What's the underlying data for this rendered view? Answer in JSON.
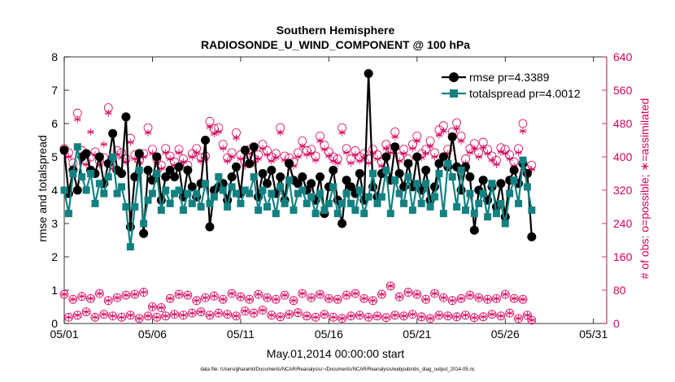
{
  "chart_data": {
    "type": "line",
    "title_line1": "Southern Hemisphere",
    "title_line2": "RADIOSONDE_U_WIND_COMPONENT @ 100 hPa",
    "xlabel": "May.01,2014 00:00:00 start",
    "ylabel_left": "rmse and totalspread",
    "ylabel_right": "# of obs: o=possible; ∗=assimilated",
    "xlim": [
      0,
      30.75
    ],
    "ylim_left": [
      0,
      8
    ],
    "ylim_right": [
      0,
      640
    ],
    "x_ticks": [
      0,
      5,
      10,
      15,
      20,
      25,
      30
    ],
    "x_tick_labels": [
      "05/01",
      "05/06",
      "05/11",
      "05/16",
      "05/21",
      "05/26",
      "05/31"
    ],
    "y_ticks_left": [
      "0",
      "1",
      "2",
      "3",
      "4",
      "5",
      "6",
      "7",
      "8"
    ],
    "y_ticks_right": [
      "0",
      "80",
      "160",
      "240",
      "320",
      "400",
      "480",
      "560",
      "640"
    ],
    "legend_position": "top-right",
    "grid": false,
    "colors": {
      "rmse": "#000000",
      "totalspread": "#138181",
      "obs": "#d6005b",
      "axes": "#000000"
    },
    "series": [
      {
        "name": "rmse pr=4.3389",
        "key": "rmse",
        "axis": "left",
        "values": [
          5.2,
          3.9,
          4.6,
          4.0,
          5.0,
          5.1,
          4.6,
          4.5,
          5.0,
          4.2,
          4.8,
          5.7,
          4.6,
          4.5,
          6.2,
          2.9,
          4.4,
          5.1,
          2.7,
          4.6,
          4.3,
          5.0,
          3.7,
          4.4,
          4.6,
          4.4,
          4.7,
          3.8,
          4.6,
          4.1,
          3.8,
          4.2,
          5.5,
          2.9,
          4.0,
          4.1,
          4.2,
          3.7,
          4.4,
          4.7,
          3.9,
          5.2,
          4.8,
          5.3,
          3.8,
          4.5,
          4.2,
          4.6,
          3.9,
          4.4,
          3.7,
          4.8,
          4.3,
          4.2,
          4.4,
          4.0,
          4.2,
          3.7,
          4.4,
          3.3,
          4.1,
          4.6,
          3.7,
          3.0,
          4.3,
          4.1,
          3.9,
          4.5,
          3.7,
          7.5,
          4.1,
          3.8,
          4.5,
          5.0,
          4.3,
          5.3,
          4.5,
          4.1,
          4.8,
          4.1,
          5.0,
          4.0,
          4.6,
          3.7,
          4.1,
          4.8,
          5.0,
          4.7,
          5.6,
          4.7,
          4.0,
          4.7,
          4.4,
          2.8,
          4.0,
          4.3,
          3.7,
          4.1,
          3.5,
          4.2,
          3.2,
          4.3,
          4.6,
          4.2,
          4.8,
          4.5,
          2.6
        ]
      },
      {
        "name": "totalspread pr=4.0012",
        "key": "totalspread",
        "axis": "left",
        "values": [
          4.0,
          3.3,
          4.5,
          5.3,
          4.4,
          4.0,
          4.5,
          3.6,
          4.2,
          3.9,
          4.4,
          5.0,
          3.9,
          4.1,
          3.5,
          2.3,
          3.5,
          4.6,
          3.0,
          3.7,
          3.9,
          4.5,
          3.4,
          4.0,
          3.6,
          3.9,
          4.0,
          3.4,
          3.9,
          3.6,
          3.9,
          3.5,
          4.2,
          3.6,
          3.8,
          4.4,
          4.0,
          3.5,
          4.1,
          3.9,
          3.6,
          4.0,
          3.9,
          4.4,
          3.4,
          4.0,
          3.5,
          3.9,
          3.3,
          4.1,
          3.6,
          4.3,
          3.4,
          3.9,
          4.0,
          3.6,
          3.8,
          3.3,
          3.9,
          3.4,
          3.6,
          4.1,
          3.3,
          3.6,
          3.9,
          3.6,
          3.4,
          4.0,
          3.3,
          3.8,
          4.5,
          3.6,
          3.8,
          4.6,
          3.3,
          4.3,
          3.9,
          3.6,
          4.4,
          3.4,
          4.2,
          3.6,
          4.2,
          3.5,
          3.8,
          4.5,
          3.3,
          4.8,
          4.4,
          3.5,
          4.6,
          3.4,
          3.9,
          3.3,
          3.6,
          3.9,
          3.2,
          4.2,
          3.3,
          3.6,
          3.0,
          3.9,
          4.3,
          3.6,
          4.9,
          4.1,
          3.4
        ]
      },
      {
        "name": "obs possible (upper)",
        "key": "obs_possible_upper",
        "axis": "right",
        "marker": "circle",
        "values": [
          420,
          410,
          385,
          505,
          415,
          390,
          400,
          412,
          390,
          398,
          518,
          380,
          415,
          410,
          395,
          445,
          405,
          392,
          408,
          470,
          418,
          395,
          380,
          420,
          402,
          388,
          418,
          395,
          380,
          408,
          420,
          398,
          402,
          485,
          468,
          470,
          430,
          398,
          410,
          458,
          405,
          388,
          418,
          395,
          405,
          430,
          415,
          400,
          408,
          470,
          402,
          398,
          388,
          410,
          438,
          415,
          418,
          402,
          450,
          428,
          412,
          400,
          395,
          470,
          420,
          395,
          415,
          400,
          408,
          395,
          418,
          405,
          388,
          430,
          420,
          460,
          400,
          418,
          395,
          430,
          450,
          408,
          418,
          438,
          410,
          465,
          475,
          418,
          460,
          482,
          450,
          395,
          420,
          432,
          410,
          435,
          418,
          402,
          392,
          422,
          418,
          405,
          388,
          420,
          480,
          370,
          380
        ]
      },
      {
        "name": "obs assimilated (upper)",
        "key": "obs_assimilated_upper",
        "axis": "right",
        "marker": "star",
        "values": [
          410,
          400,
          375,
          490,
          405,
          382,
          460,
          405,
          380,
          430,
          505,
          372,
          405,
          398,
          388,
          435,
          395,
          385,
          400,
          458,
          408,
          385,
          372,
          410,
          395,
          380,
          410,
          388,
          372,
          400,
          410,
          390,
          395,
          472,
          455,
          460,
          420,
          390,
          400,
          445,
          395,
          378,
          408,
          385,
          395,
          420,
          405,
          390,
          398,
          458,
          392,
          388,
          378,
          400,
          425,
          405,
          408,
          392,
          438,
          418,
          402,
          390,
          385,
          458,
          410,
          385,
          405,
          390,
          398,
          385,
          408,
          395,
          378,
          420,
          410,
          448,
          390,
          408,
          385,
          420,
          438,
          398,
          408,
          425,
          400,
          452,
          462,
          408,
          448,
          468,
          438,
          385,
          410,
          420,
          400,
          422,
          408,
          392,
          382,
          412,
          408,
          395,
          378,
          410,
          462,
          360,
          370
        ]
      },
      {
        "name": "obs possible (lower)",
        "key": "obs_possible_lower",
        "axis": "right",
        "marker": "circle",
        "values": [
          70,
          15,
          58,
          20,
          65,
          28,
          60,
          15,
          72,
          22,
          55,
          18,
          62,
          15,
          68,
          20,
          70,
          12,
          75,
          18,
          40,
          15,
          38,
          18,
          60,
          22,
          70,
          20,
          68,
          25,
          55,
          28,
          62,
          20,
          66,
          25,
          58,
          22,
          72,
          18,
          64,
          30,
          58,
          25,
          70,
          32,
          62,
          20,
          58,
          16,
          68,
          22,
          55,
          26,
          72,
          18,
          62,
          15,
          70,
          22,
          60,
          15,
          58,
          12,
          68,
          18,
          72,
          20,
          60,
          15,
          55,
          18,
          70,
          14,
          90,
          20,
          64,
          18,
          75,
          22,
          70,
          16,
          58,
          12,
          72,
          20,
          62,
          18,
          55,
          16,
          60,
          20,
          68,
          14,
          62,
          16,
          58,
          22,
          60,
          18,
          70,
          25,
          60,
          12,
          58,
          20,
          8
        ]
      },
      {
        "name": "obs assimilated (lower)",
        "key": "obs_assimilated_lower",
        "axis": "right",
        "marker": "star",
        "values": [
          70,
          15,
          58,
          20,
          65,
          28,
          60,
          15,
          72,
          22,
          55,
          18,
          62,
          15,
          68,
          20,
          70,
          12,
          75,
          18,
          40,
          15,
          38,
          18,
          60,
          22,
          70,
          20,
          68,
          25,
          55,
          28,
          62,
          20,
          66,
          25,
          58,
          22,
          72,
          18,
          64,
          30,
          58,
          25,
          70,
          32,
          62,
          20,
          58,
          16,
          68,
          22,
          55,
          26,
          72,
          18,
          62,
          15,
          70,
          22,
          60,
          15,
          58,
          12,
          68,
          18,
          72,
          20,
          60,
          15,
          55,
          18,
          70,
          14,
          90,
          20,
          64,
          18,
          75,
          22,
          70,
          16,
          58,
          12,
          72,
          20,
          62,
          18,
          55,
          16,
          60,
          20,
          68,
          14,
          62,
          16,
          58,
          22,
          60,
          18,
          70,
          25,
          60,
          12,
          58,
          20,
          8
        ]
      }
    ],
    "x_step_days": 0.25,
    "x_start": 0,
    "footnote": "data file: /Users/gharamti/Documents/NCAR/Reanalysis/~/Documents/NCAR/Reanalysis/webpub/obs_diag_output_2014-05.nc"
  }
}
